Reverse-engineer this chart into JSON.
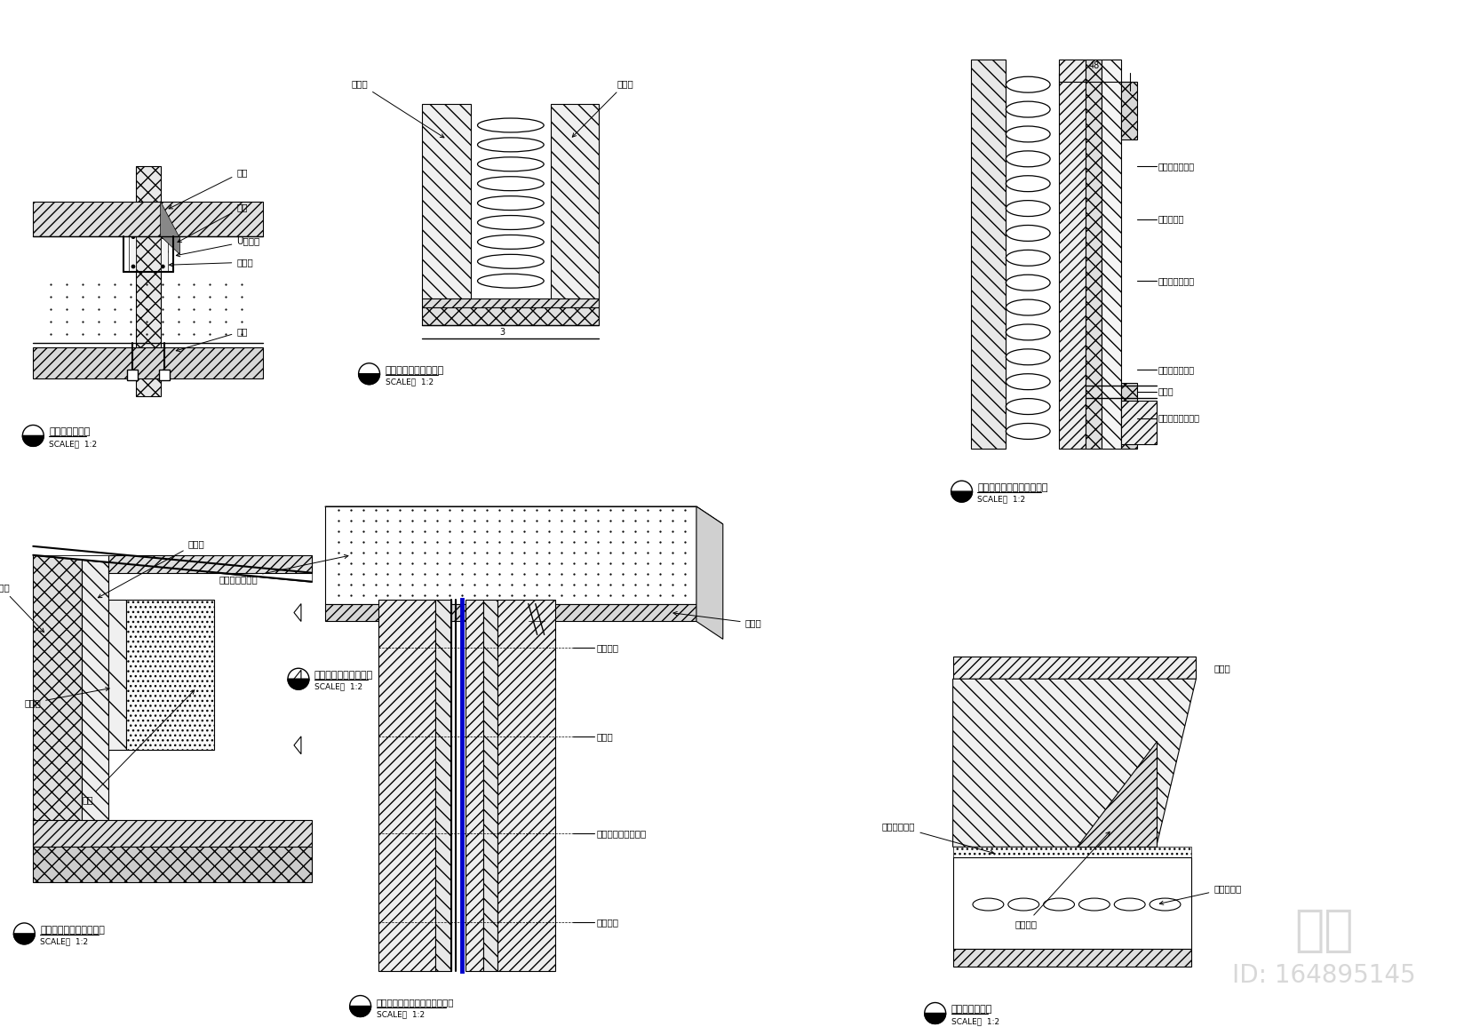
{
  "bg_color": "#ffffff",
  "line_color": "#000000",
  "watermark": "知末",
  "watermark_id": "ID: 164895145",
  "diagram_titles": [
    "插地玻璃节点图",
    "木饰面与木饰面书点图",
    "墙纸或皮革硬包大样图",
    "马鞍皮革与布艺软包节点图",
    "木饰面与墙纸转角节点图",
    "轻钢龙骨隔墙镜面不锈钢的做法",
    "皮革软包节点图"
  ],
  "scale_text": "SCALE：  1:2",
  "blue_color": "#0000cc",
  "hatch_color": "#000000",
  "light_gray": "#f0f0f0",
  "mid_gray": "#e0e0e0",
  "dark_gray": "#c8c8c8"
}
